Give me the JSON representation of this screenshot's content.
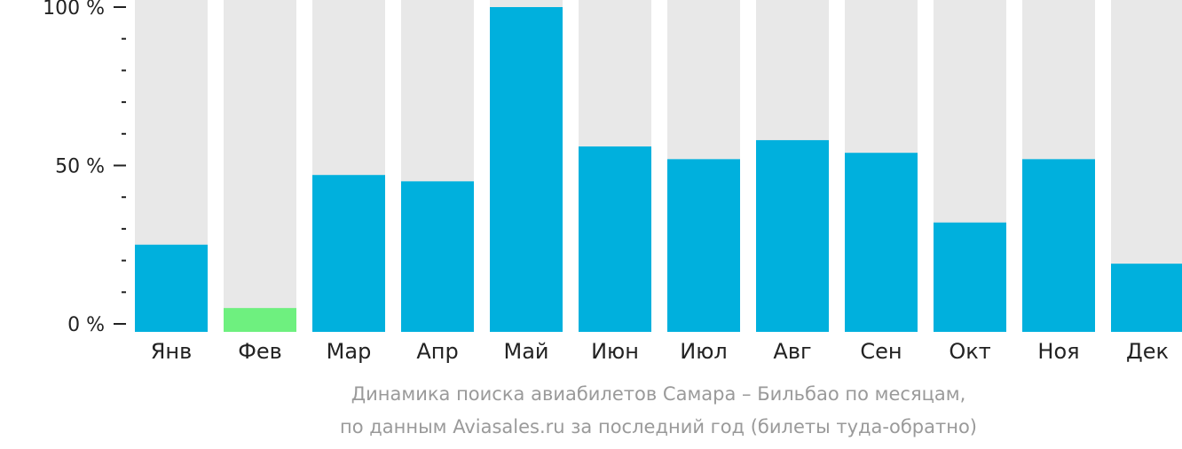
{
  "chart_data": {
    "type": "bar",
    "categories": [
      "Янв",
      "Фев",
      "Мар",
      "Апр",
      "Май",
      "Июн",
      "Июл",
      "Авг",
      "Сен",
      "Окт",
      "Ноя",
      "Дек"
    ],
    "values": [
      25,
      5,
      47,
      45,
      100,
      56,
      52,
      58,
      54,
      32,
      52,
      19
    ],
    "ylim": [
      0,
      100
    ],
    "y_ticks": [
      "0 %",
      "50 %",
      "100 %"
    ],
    "caption_line1": "Динамика поиска авиабилетов Самара – Бильбао по месяцам,",
    "caption_line2": "по данным Aviasales.ru за последний год (билеты туда-обратно)",
    "highlight_index": 1,
    "colors": {
      "bar": "#00b0dd",
      "highlight": "#6ef07f",
      "track": "#e8e8e8",
      "axis": "#222222",
      "caption": "#9a9a9a"
    }
  }
}
